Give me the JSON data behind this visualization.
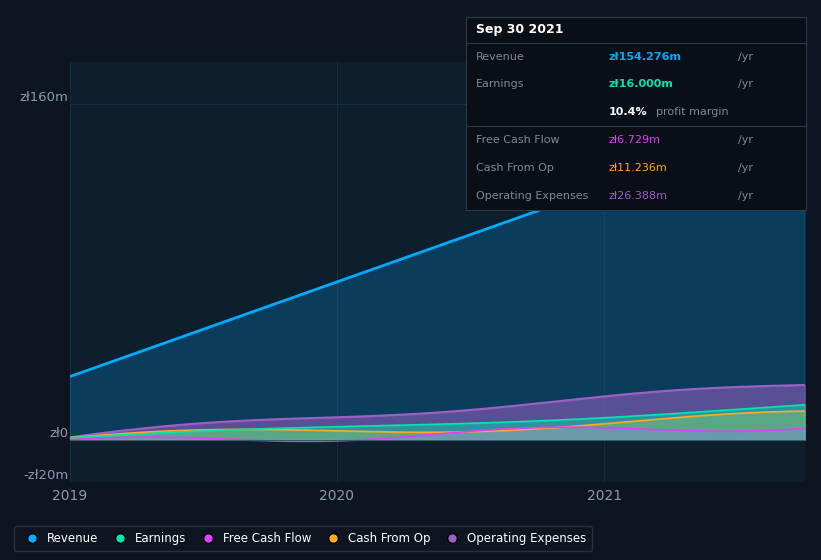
{
  "bg_color": "#0e1520",
  "plot_bg_color": "#0d1f2d",
  "grid_color": "#1a3040",
  "ylabel_top": "zł160m",
  "ylabel_zero": "zł0",
  "ylabel_neg": "-zł20m",
  "x_ticks_labels": [
    "2019",
    "2020",
    "2021"
  ],
  "x_ticks_pos": [
    0.0,
    1.0,
    2.0
  ],
  "ylim": [
    -20,
    180
  ],
  "yticks": [
    160,
    0,
    -20
  ],
  "revenue_color": "#00aaff",
  "earnings_color": "#00e5b0",
  "fcf_color": "#e040fb",
  "cashfromop_color": "#ffa726",
  "opex_color": "#9c5fc5",
  "revenue_fill_alpha": 0.3,
  "legend": [
    {
      "label": "Revenue",
      "color": "#00aaff"
    },
    {
      "label": "Earnings",
      "color": "#00e5b0"
    },
    {
      "label": "Free Cash Flow",
      "color": "#e040fb"
    },
    {
      "label": "Cash From Op",
      "color": "#ffa726"
    },
    {
      "label": "Operating Expenses",
      "color": "#9c5fc5"
    }
  ],
  "tooltip_bg": "#0a0e17",
  "tooltip_border": "#2a3a4a",
  "tooltip_header": "Sep 30 2021",
  "tooltip_rows": [
    {
      "label": "Revenue",
      "value": "zł154.276m",
      "suffix": " /yr",
      "color": "#00aaff",
      "bold": true,
      "sep_before": true
    },
    {
      "label": "Earnings",
      "value": "zł16.000m",
      "suffix": " /yr",
      "color": "#00e5b0",
      "bold": true,
      "sep_before": false
    },
    {
      "label": "",
      "value": "10.4%",
      "suffix": " profit margin",
      "color": "#ffffff",
      "bold": true,
      "sep_before": false
    },
    {
      "label": "Free Cash Flow",
      "value": "zł6.729m",
      "suffix": " /yr",
      "color": "#e040fb",
      "bold": false,
      "sep_before": true
    },
    {
      "label": "Cash From Op",
      "value": "zł11.236m",
      "suffix": " /yr",
      "color": "#ffa726",
      "bold": false,
      "sep_before": false
    },
    {
      "label": "Operating Expenses",
      "value": "zł26.388m",
      "suffix": " /yr",
      "color": "#9c5fc5",
      "bold": false,
      "sep_before": false
    }
  ]
}
